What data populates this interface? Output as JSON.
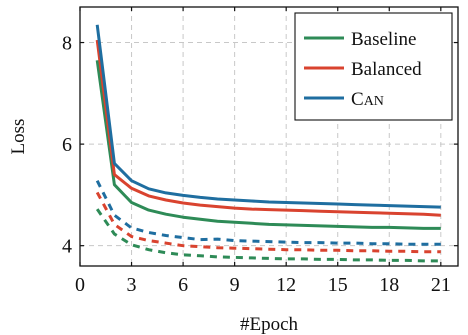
{
  "chart_data": {
    "type": "line",
    "xlabel": "#Epoch",
    "ylabel": "Loss",
    "xlim": [
      0,
      22
    ],
    "ylim": [
      3.6,
      8.7
    ],
    "xticks": [
      0,
      3,
      6,
      9,
      12,
      15,
      18,
      21
    ],
    "yticks": [
      4,
      6,
      8
    ],
    "x_tick_labels": [
      "0",
      "3",
      "6",
      "9",
      "12",
      "15",
      "18",
      "21"
    ],
    "y_tick_labels": [
      "4",
      "6",
      "8"
    ],
    "grid": true,
    "legend_position": "top-right",
    "x": [
      1,
      2,
      3,
      4,
      5,
      6,
      7,
      8,
      9,
      10,
      11,
      12,
      13,
      14,
      15,
      16,
      17,
      18,
      19,
      20,
      21
    ],
    "series": [
      {
        "name": "Baseline",
        "color": "#2e8b57",
        "style": "solid",
        "values": [
          7.65,
          5.2,
          4.85,
          4.7,
          4.62,
          4.56,
          4.52,
          4.48,
          4.46,
          4.44,
          4.42,
          4.41,
          4.4,
          4.39,
          4.38,
          4.37,
          4.36,
          4.36,
          4.35,
          4.34,
          4.34
        ]
      },
      {
        "name": "Balanced",
        "color": "#d9432f",
        "style": "solid",
        "values": [
          8.05,
          5.4,
          5.13,
          4.98,
          4.9,
          4.84,
          4.8,
          4.77,
          4.74,
          4.72,
          4.71,
          4.7,
          4.69,
          4.68,
          4.67,
          4.66,
          4.65,
          4.64,
          4.63,
          4.62,
          4.6
        ]
      },
      {
        "name": "Can",
        "color": "#1f6ea0",
        "style": "solid",
        "values": [
          8.35,
          5.62,
          5.28,
          5.12,
          5.04,
          4.99,
          4.95,
          4.92,
          4.9,
          4.88,
          4.86,
          4.85,
          4.84,
          4.83,
          4.82,
          4.81,
          4.8,
          4.79,
          4.78,
          4.77,
          4.76
        ]
      },
      {
        "color": "#2e8b57",
        "style": "dashed",
        "values": [
          4.72,
          4.23,
          4.02,
          3.92,
          3.86,
          3.82,
          3.8,
          3.78,
          3.77,
          3.76,
          3.75,
          3.74,
          3.74,
          3.73,
          3.73,
          3.72,
          3.72,
          3.71,
          3.71,
          3.7,
          3.7
        ]
      },
      {
        "color": "#d9432f",
        "style": "dashed",
        "values": [
          5.05,
          4.42,
          4.18,
          4.1,
          4.05,
          4.0,
          3.98,
          3.96,
          3.95,
          3.94,
          3.93,
          3.92,
          3.92,
          3.91,
          3.91,
          3.9,
          3.9,
          3.89,
          3.89,
          3.88,
          3.88
        ]
      },
      {
        "color": "#1f6ea0",
        "style": "dashed",
        "values": [
          5.28,
          4.6,
          4.35,
          4.26,
          4.2,
          4.16,
          4.12,
          4.13,
          4.1,
          4.09,
          4.08,
          4.07,
          4.06,
          4.06,
          4.05,
          4.05,
          4.04,
          4.04,
          4.03,
          4.03,
          4.03
        ]
      }
    ],
    "legend": [
      {
        "label": "Baseline",
        "color": "#2e8b57"
      },
      {
        "label": "Balanced",
        "color": "#d9432f"
      },
      {
        "label_first": "C",
        "label_rest": "AN",
        "color": "#1f6ea0"
      }
    ]
  }
}
